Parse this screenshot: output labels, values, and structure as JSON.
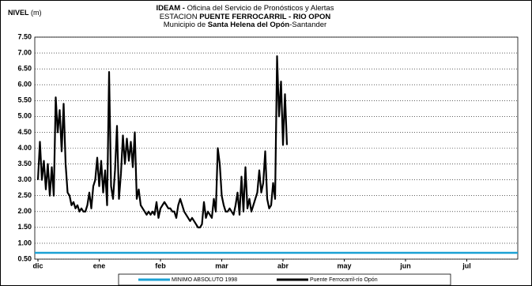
{
  "chart_data": {
    "type": "line",
    "title": [
      "IDEAM -",
      "Oficina del Servicio de Pronósticos y Alertas"
    ],
    "subtitle": [
      "ESTACION",
      "PUENTE FERROCARRIL - RIO OPON"
    ],
    "subtitle2": [
      "Municipio de",
      "Santa Helena del Opón",
      "-Santander"
    ],
    "y_label": [
      "NIVEL",
      "(m)"
    ],
    "xlim": [
      -1.6,
      242.8
    ],
    "xticks": [
      {
        "value": 0,
        "label": "dic"
      },
      {
        "value": 31,
        "label": "ene"
      },
      {
        "value": 62,
        "label": "feb"
      },
      {
        "value": 93,
        "label": "mar"
      },
      {
        "value": 124,
        "label": "abr"
      },
      {
        "value": 155,
        "label": "may"
      },
      {
        "value": 186,
        "label": "jun"
      },
      {
        "value": 217,
        "label": "jul"
      }
    ],
    "ylim": [
      0.5,
      7.5
    ],
    "yticks": [
      {
        "value": 0.5,
        "label": "0.50"
      },
      {
        "value": 1,
        "label": "1.00"
      },
      {
        "value": 1.5,
        "label": "1.50"
      },
      {
        "value": 2,
        "label": "2.00"
      },
      {
        "value": 2.5,
        "label": "2.50"
      },
      {
        "value": 3,
        "label": "3.00"
      },
      {
        "value": 3.5,
        "label": "3.50"
      },
      {
        "value": 4,
        "label": "4.00"
      },
      {
        "value": 4.5,
        "label": "4.50"
      },
      {
        "value": 5,
        "label": "5.00"
      },
      {
        "value": 5.5,
        "label": "5.50"
      },
      {
        "value": 6,
        "label": "6.00"
      },
      {
        "value": 6.5,
        "label": "6.50"
      },
      {
        "value": 7,
        "label": "7.00"
      },
      {
        "value": 7.5,
        "label": "7.50"
      }
    ],
    "grid": true,
    "reference_lines": [
      {
        "name": "MINIMO ABSOLUTO 1998",
        "color": "#1ba1d4",
        "value": 0.7
      }
    ],
    "series": [
      {
        "name": "Puente Ferrocarril-río Opón",
        "color": "#000000",
        "x": [
          0,
          1,
          2,
          3,
          4,
          5,
          6,
          7,
          8,
          9,
          10,
          11,
          12,
          13,
          14,
          15,
          16,
          17,
          18,
          19,
          20,
          21,
          22,
          23,
          24,
          25,
          26,
          27,
          28,
          29,
          30,
          31,
          32,
          33,
          34,
          35,
          36,
          37,
          38,
          39,
          40,
          41,
          42,
          43,
          44,
          45,
          46,
          47,
          48,
          49,
          50,
          51,
          52,
          53,
          54,
          55,
          56,
          57,
          58,
          59,
          60,
          61,
          62,
          63,
          64,
          65,
          66,
          67,
          68,
          69,
          70,
          71,
          72,
          73,
          74,
          75,
          76,
          77,
          78,
          79,
          80,
          81,
          82,
          83,
          84,
          85,
          86,
          87,
          88,
          89,
          90,
          91,
          92,
          93,
          94,
          95,
          96,
          97,
          98,
          99,
          100,
          101,
          102,
          103,
          104,
          105,
          106,
          107,
          108,
          109,
          110,
          111,
          112,
          113,
          114,
          115,
          116,
          117,
          118,
          119,
          120,
          121,
          122,
          123,
          124,
          125,
          126
        ],
        "values": [
          3.0,
          4.2,
          3.0,
          3.6,
          2.7,
          3.5,
          2.5,
          3.4,
          2.5,
          5.6,
          4.5,
          5.2,
          3.9,
          5.4,
          3.5,
          2.6,
          2.5,
          2.2,
          2.3,
          2.1,
          2.2,
          2.0,
          2.1,
          2.0,
          2.0,
          2.2,
          2.6,
          2.1,
          2.8,
          3.0,
          3.7,
          2.8,
          3.6,
          2.6,
          3.3,
          2.2,
          6.4,
          2.8,
          2.4,
          3.3,
          4.7,
          2.4,
          3.2,
          4.4,
          3.5,
          4.3,
          3.6,
          4.2,
          3.4,
          4.5,
          2.4,
          2.7,
          2.2,
          2.1,
          2.0,
          1.9,
          2.0,
          1.9,
          2.0,
          1.9,
          2.3,
          1.8,
          2.1,
          2.2,
          2.3,
          2.2,
          2.1,
          2.1,
          2.0,
          2.0,
          1.8,
          2.2,
          2.4,
          2.2,
          2.0,
          1.9,
          1.8,
          1.7,
          1.8,
          1.7,
          1.6,
          1.5,
          1.5,
          1.6,
          2.3,
          1.8,
          2.0,
          1.9,
          1.8,
          2.4,
          2.0,
          4.0,
          3.5,
          2.5,
          2.2,
          2.0,
          2.0,
          2.1,
          2.0,
          1.9,
          2.2,
          2.6,
          1.9,
          3.1,
          2.0,
          3.4,
          2.1,
          2.4,
          2.0,
          2.2,
          2.4,
          2.6,
          3.3,
          2.6,
          2.9,
          3.9,
          2.4,
          2.1,
          2.2,
          2.9,
          2.4,
          6.9,
          5.0,
          6.1,
          4.1,
          5.7,
          4.1
        ]
      }
    ]
  }
}
